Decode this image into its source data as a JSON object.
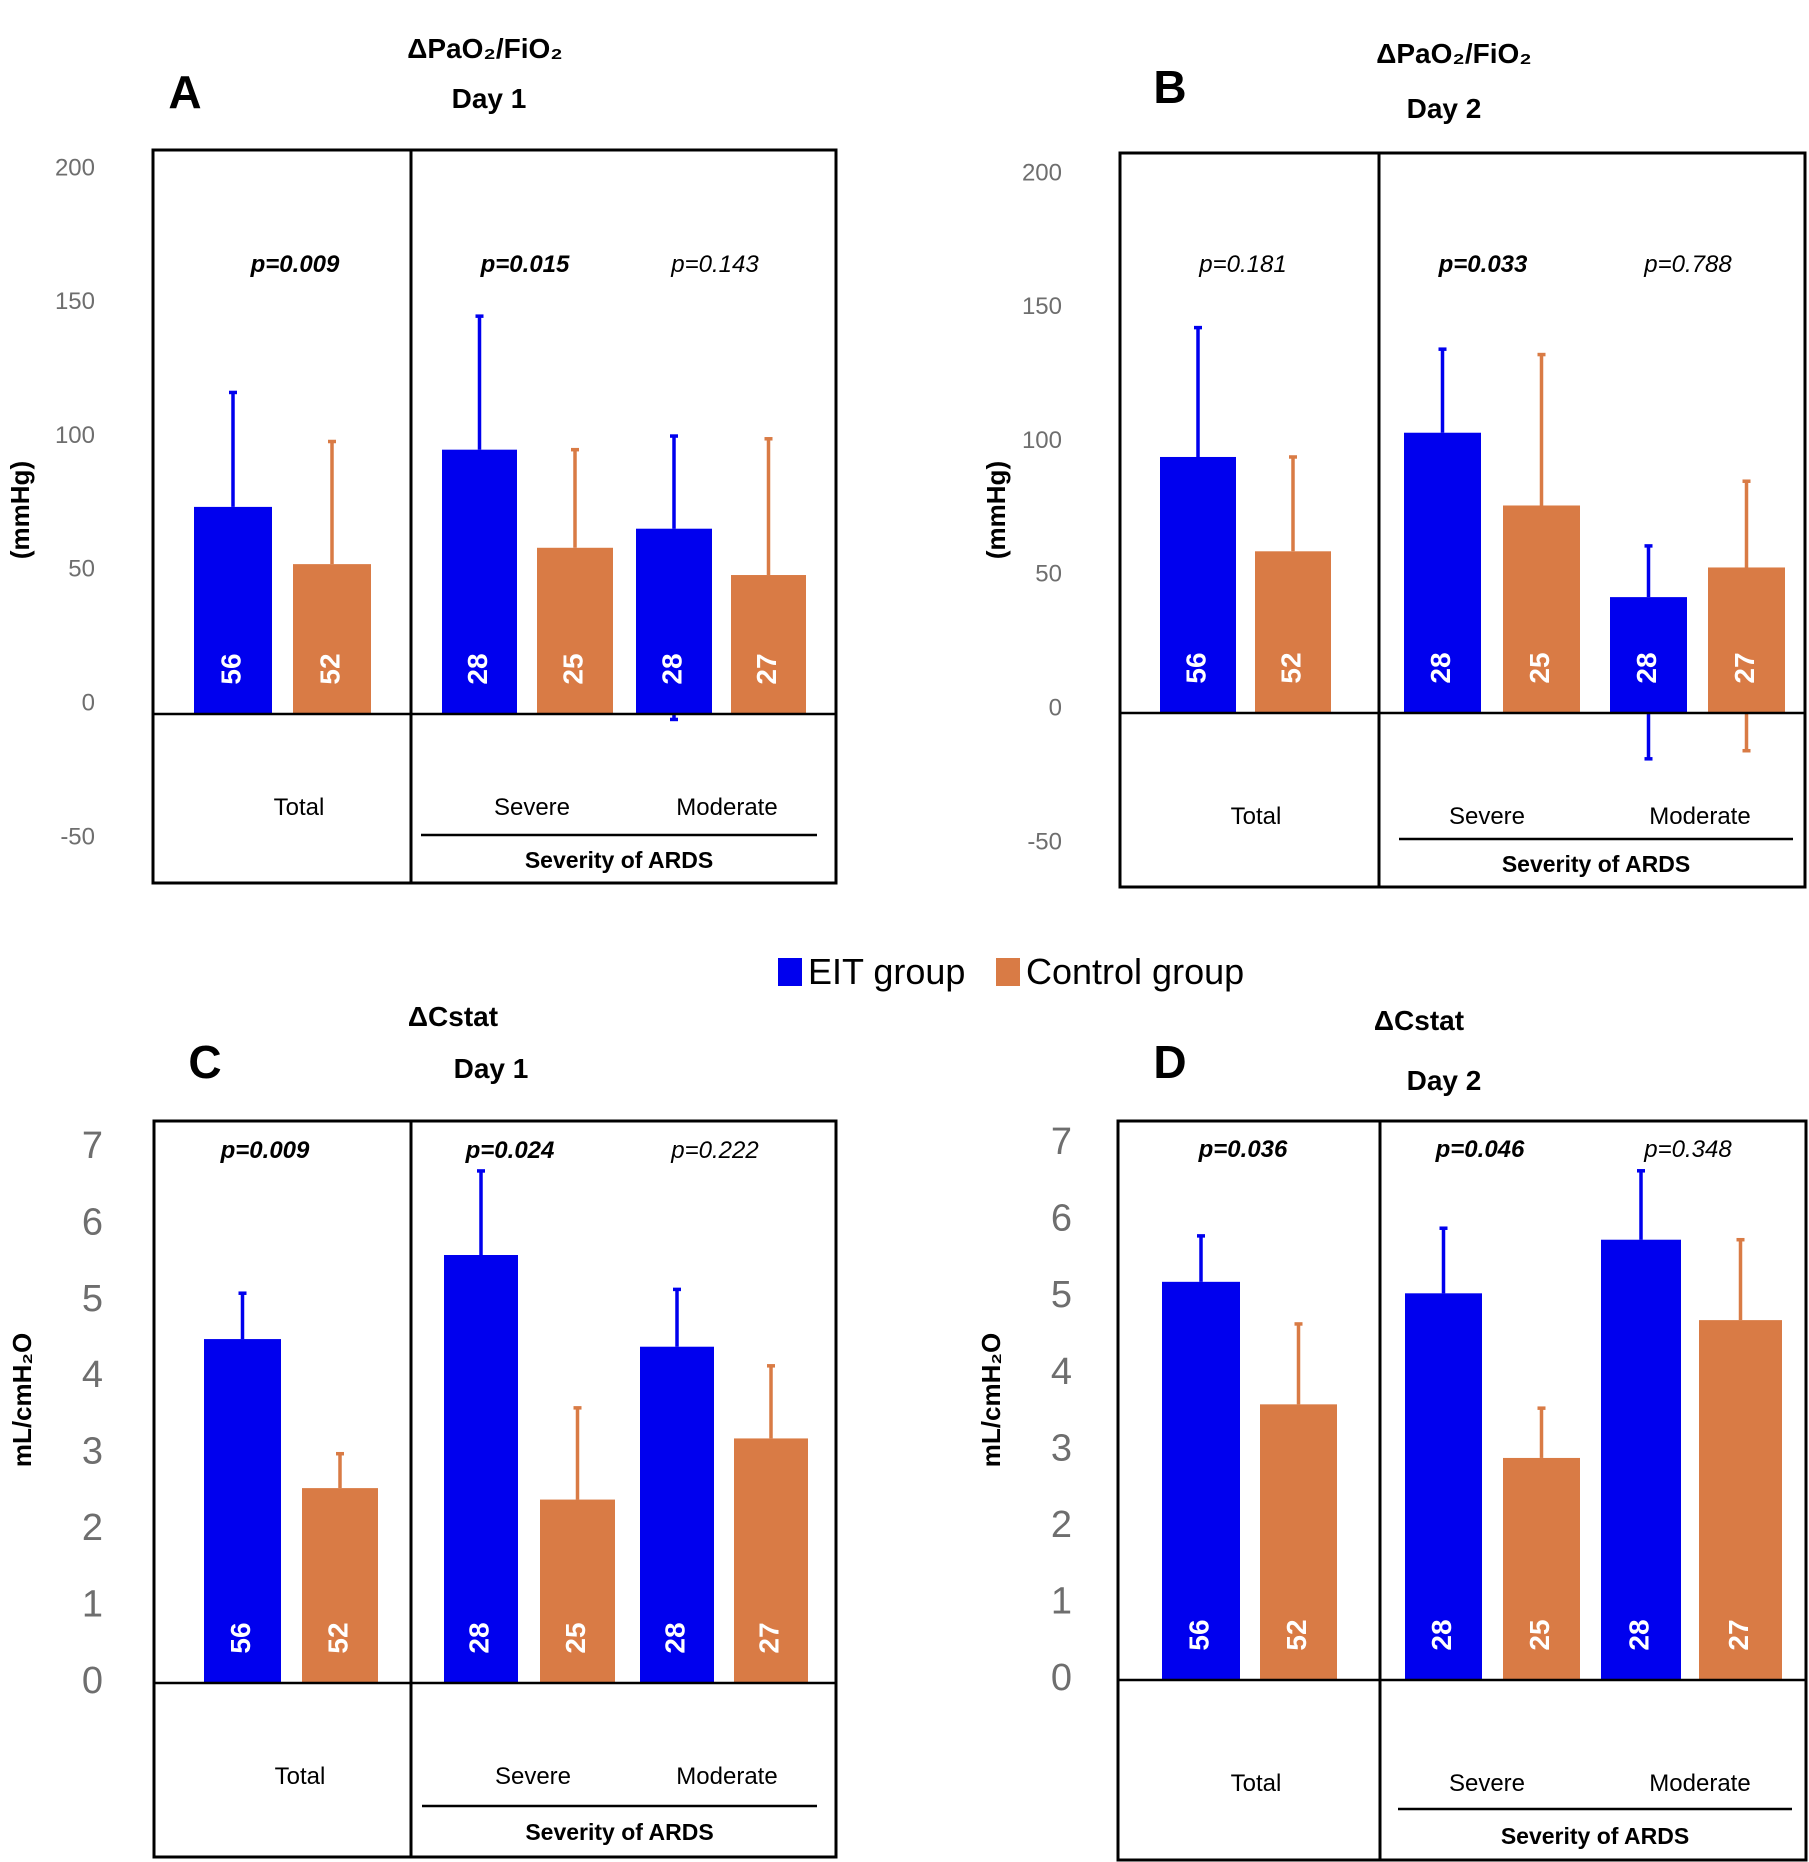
{
  "colors": {
    "eit": "#0000ee",
    "control": "#d97b45"
  },
  "legend": {
    "eit_label": "EIT group",
    "control_label": "Control group"
  },
  "chart_data": [
    {
      "panel": "A",
      "type": "bar",
      "title": "ΔPaO₂/FiO₂",
      "subtitle": "Day 1",
      "ylabel": "(mmHg)",
      "ylim": [
        -50,
        200
      ],
      "yticks": [
        "200",
        "150",
        "100",
        "50",
        "0",
        "-50"
      ],
      "categories": [
        "Total",
        "Severe",
        "Moderate"
      ],
      "group_label": "Severity of ARDS",
      "series": [
        {
          "name": "EIT group",
          "values": [
            76,
            97,
            68
          ],
          "error_low": [
            76,
            97,
            70
          ],
          "error_high": [
            118,
            146,
            102
          ],
          "n": [
            "56",
            "28",
            "28"
          ]
        },
        {
          "name": "Control group",
          "values": [
            55,
            61,
            51
          ],
          "error_low": [
            55,
            61,
            39
          ],
          "error_high": [
            100,
            97,
            101
          ],
          "n": [
            "52",
            "25",
            "27"
          ]
        }
      ],
      "pvalues": [
        {
          "text": "p=0.009",
          "bold": true
        },
        {
          "text": "p=0.015",
          "bold": true
        },
        {
          "text": "p=0.143",
          "bold": false
        }
      ]
    },
    {
      "panel": "B",
      "type": "bar",
      "title": "ΔPaO₂/FiO₂",
      "subtitle": "Day 2",
      "ylabel": "(mmHg)",
      "ylim": [
        -50,
        200
      ],
      "yticks": [
        "200",
        "150",
        "100",
        "50",
        "0",
        "-50"
      ],
      "categories": [
        "Total",
        "Severe",
        "Moderate"
      ],
      "group_label": "Severity of ARDS",
      "series": [
        {
          "name": "EIT group",
          "values": [
            95,
            104,
            43
          ],
          "error_low": [
            95,
            104,
            60
          ],
          "error_high": [
            143,
            135,
            62
          ],
          "n": [
            "56",
            "28",
            "28"
          ]
        },
        {
          "name": "Control group",
          "values": [
            60,
            77,
            54
          ],
          "error_low": [
            60,
            77,
            68
          ],
          "error_high": [
            95,
            133,
            86
          ],
          "n": [
            "52",
            "25",
            "27"
          ]
        }
      ],
      "pvalues": [
        {
          "text": "p=0.181",
          "bold": false
        },
        {
          "text": "p=0.033",
          "bold": true
        },
        {
          "text": "p=0.788",
          "bold": false
        }
      ]
    },
    {
      "panel": "C",
      "type": "bar",
      "title": "ΔCstat",
      "subtitle": "Day 1",
      "ylabel": "mL/cmH₂O",
      "ylim": [
        0,
        7
      ],
      "yticks": [
        "7",
        "6",
        "5",
        "4",
        "3",
        "2",
        "1",
        "0"
      ],
      "categories": [
        "Total",
        "Severe",
        "Moderate"
      ],
      "group_label": "Severity of ARDS",
      "series": [
        {
          "name": "EIT group",
          "values": [
            4.5,
            5.6,
            4.4
          ],
          "error_low": [
            0,
            0,
            0
          ],
          "error_high": [
            5.1,
            6.7,
            5.15
          ],
          "n": [
            "56",
            "28",
            "28"
          ]
        },
        {
          "name": "Control group",
          "values": [
            2.55,
            2.4,
            3.2
          ],
          "error_low": [
            0,
            0,
            0
          ],
          "error_high": [
            3.0,
            3.6,
            4.15
          ],
          "n": [
            "52",
            "25",
            "27"
          ]
        }
      ],
      "pvalues": [
        {
          "text": "p=0.009",
          "bold": true
        },
        {
          "text": "p=0.024",
          "bold": true
        },
        {
          "text": "p=0.222",
          "bold": false
        }
      ]
    },
    {
      "panel": "D",
      "type": "bar",
      "title": "ΔCstat",
      "subtitle": "Day 2",
      "ylabel": "mL/cmH₂O",
      "ylim": [
        0,
        7
      ],
      "yticks": [
        "7",
        "6",
        "5",
        "4",
        "3",
        "2",
        "1",
        "0"
      ],
      "categories": [
        "Total",
        "Severe",
        "Moderate"
      ],
      "group_label": "Severity of ARDS",
      "series": [
        {
          "name": "EIT group",
          "values": [
            5.2,
            5.05,
            5.75
          ],
          "error_low": [
            0,
            0,
            0
          ],
          "error_high": [
            5.8,
            5.9,
            6.65
          ],
          "n": [
            "56",
            "28",
            "28"
          ]
        },
        {
          "name": "Control group",
          "values": [
            3.6,
            2.9,
            4.7
          ],
          "error_low": [
            0,
            0,
            0
          ],
          "error_high": [
            4.65,
            3.55,
            5.75
          ],
          "n": [
            "52",
            "25",
            "27"
          ]
        }
      ],
      "pvalues": [
        {
          "text": "p=0.036",
          "bold": true
        },
        {
          "text": "p=0.046",
          "bold": true
        },
        {
          "text": "p=0.348",
          "bold": false
        }
      ]
    }
  ]
}
